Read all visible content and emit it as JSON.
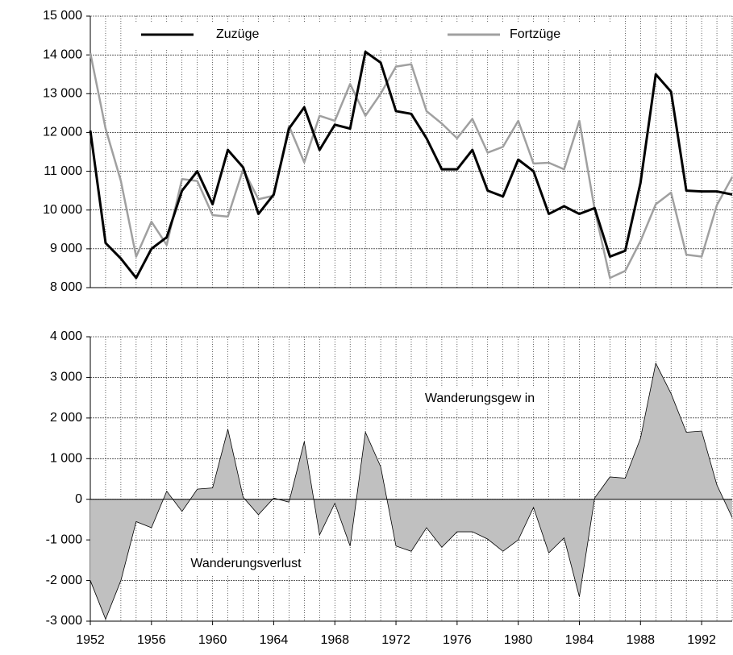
{
  "chart_data": [
    {
      "type": "line",
      "x": [
        1952,
        1953,
        1954,
        1955,
        1956,
        1957,
        1958,
        1959,
        1960,
        1961,
        1962,
        1963,
        1964,
        1965,
        1966,
        1967,
        1968,
        1969,
        1970,
        1971,
        1972,
        1973,
        1974,
        1975,
        1976,
        1977,
        1978,
        1979,
        1980,
        1981,
        1982,
        1983,
        1984,
        1985,
        1986,
        1987,
        1988,
        1989,
        1990,
        1991,
        1992,
        1993,
        1994
      ],
      "xlim": [
        1952,
        1994
      ],
      "ylim": [
        8000,
        15000
      ],
      "yticks": [
        {
          "value": 8000,
          "label": "8 000"
        },
        {
          "value": 9000,
          "label": "9 000"
        },
        {
          "value": 10000,
          "label": "10 000"
        },
        {
          "value": 11000,
          "label": "11 000"
        },
        {
          "value": 12000,
          "label": "12 000"
        },
        {
          "value": 13000,
          "label": "13 000"
        },
        {
          "value": 14000,
          "label": "14 000"
        },
        {
          "value": 15000,
          "label": "15 000"
        }
      ],
      "grid": true,
      "legend": "top",
      "series": [
        {
          "name": "Zuzüge",
          "color": "#000000",
          "values": [
            12050,
            9150,
            8750,
            8250,
            9000,
            9300,
            10500,
            11000,
            10150,
            11550,
            11100,
            9900,
            10400,
            12100,
            12650,
            11550,
            12200,
            12100,
            14080,
            13800,
            12550,
            12480,
            11850,
            11050,
            11050,
            11550,
            10500,
            10350,
            11300,
            11000,
            9900,
            10100,
            9900,
            10050,
            8800,
            8950,
            10700,
            13500,
            13050,
            10500,
            10480,
            10480,
            10400
          ]
        },
        {
          "name": "Fortzüge",
          "color": "#a0a0a0",
          "values": [
            14050,
            12100,
            10750,
            8800,
            9700,
            9100,
            10800,
            10750,
            9870,
            9830,
            11050,
            10280,
            10370,
            12170,
            11230,
            12430,
            12300,
            13250,
            12430,
            13000,
            13700,
            13760,
            12550,
            12230,
            11850,
            12350,
            11480,
            11630,
            12300,
            11200,
            11220,
            11050,
            12300,
            10020,
            8250,
            8430,
            9200,
            10150,
            10450,
            8850,
            8800,
            10130,
            10850
          ]
        }
      ]
    },
    {
      "type": "area",
      "x": [
        1952,
        1953,
        1954,
        1955,
        1956,
        1957,
        1958,
        1959,
        1960,
        1961,
        1962,
        1963,
        1964,
        1965,
        1966,
        1967,
        1968,
        1969,
        1970,
        1971,
        1972,
        1973,
        1974,
        1975,
        1976,
        1977,
        1978,
        1979,
        1980,
        1981,
        1982,
        1983,
        1984,
        1985,
        1986,
        1987,
        1988,
        1989,
        1990,
        1991,
        1992,
        1993,
        1994
      ],
      "xlim": [
        1952,
        1994
      ],
      "xticks": [
        1952,
        1956,
        1960,
        1964,
        1968,
        1972,
        1976,
        1980,
        1984,
        1988,
        1992
      ],
      "ylim": [
        -3000,
        4000
      ],
      "yticks": [
        {
          "value": -3000,
          "label": "-3 000"
        },
        {
          "value": -2000,
          "label": "-2 000"
        },
        {
          "value": -1000,
          "label": "-1 000"
        },
        0,
        {
          "value": 1000,
          "label": "1 000"
        },
        {
          "value": 2000,
          "label": "2 000"
        },
        {
          "value": 3000,
          "label": "3 000"
        },
        {
          "value": 4000,
          "label": "4 000"
        }
      ],
      "grid": true,
      "color": "#c0c0c0",
      "values": [
        -2000,
        -2950,
        -2000,
        -550,
        -700,
        200,
        -300,
        250,
        280,
        1720,
        50,
        -380,
        30,
        -70,
        1420,
        -880,
        -100,
        -1150,
        1650,
        800,
        -1150,
        -1280,
        -700,
        -1180,
        -800,
        -800,
        -980,
        -1280,
        -1000,
        -200,
        -1320,
        -950,
        -2400,
        30,
        550,
        520,
        1500,
        3350,
        2600,
        1650,
        1680,
        350,
        -450
      ],
      "annotations": [
        "Wanderungsgew in",
        "Wanderungsverlust"
      ]
    }
  ]
}
